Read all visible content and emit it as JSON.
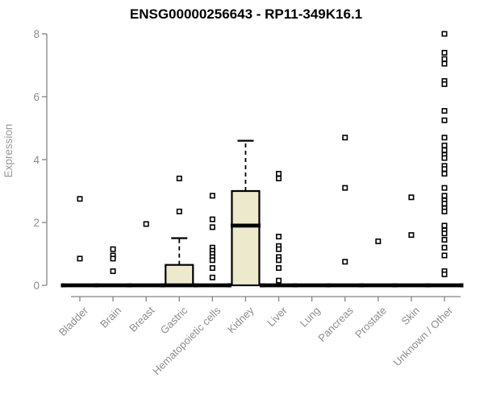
{
  "chart_data": {
    "type": "boxplot",
    "title": "ENSG00000256643 - RP11-349K16.1",
    "ylabel": "Expression",
    "xlabel": "",
    "ylim": [
      0,
      8
    ],
    "yticks": [
      0,
      2,
      4,
      6,
      8
    ],
    "grid": false,
    "legend": "none",
    "box_fill_color": "#ece9cd",
    "box_border_color": "#000000",
    "axis_color": "#848484",
    "tick_label_color": "#8c8c8c",
    "ylabel_color": "#9a9a9a",
    "categories": [
      "Bladder",
      "Brain",
      "Breast",
      "Gastric",
      "Hematopoietic cells",
      "Kidney",
      "Liver",
      "Lung",
      "Pancreas",
      "Prostate",
      "Skin",
      "Unknown / Other"
    ],
    "boxes": [
      {
        "category": "Bladder",
        "q1": 0,
        "median": 0,
        "q3": 0,
        "whisker_low": 0,
        "whisker_high": 0,
        "outliers": [
          2.75,
          0.85
        ]
      },
      {
        "category": "Brain",
        "q1": 0,
        "median": 0,
        "q3": 0,
        "whisker_low": 0,
        "whisker_high": 0,
        "outliers": [
          1.15,
          0.95,
          0.85,
          0.45
        ]
      },
      {
        "category": "Breast",
        "q1": 0,
        "median": 0,
        "q3": 0,
        "whisker_low": 0,
        "whisker_high": 0,
        "outliers": [
          1.95
        ]
      },
      {
        "category": "Gastric",
        "q1": 0,
        "median": 0,
        "q3": 0.65,
        "whisker_low": 0,
        "whisker_high": 1.5,
        "outliers": [
          3.4,
          2.35
        ]
      },
      {
        "category": "Hematopoietic cells",
        "q1": 0,
        "median": 0,
        "q3": 0,
        "whisker_low": 0,
        "whisker_high": 0,
        "outliers": [
          2.85,
          2.1,
          1.85,
          1.2,
          1.1,
          1.0,
          0.9,
          0.8,
          0.55,
          0.25
        ]
      },
      {
        "category": "Kidney",
        "q1": 0,
        "median": 1.9,
        "q3": 3.0,
        "whisker_low": 0,
        "whisker_high": 4.6,
        "outliers": []
      },
      {
        "category": "Liver",
        "q1": 0,
        "median": 0,
        "q3": 0,
        "whisker_low": 0,
        "whisker_high": 0,
        "outliers": [
          3.55,
          3.4,
          1.55,
          1.25,
          1.15,
          0.9,
          0.8,
          0.55,
          0.15
        ]
      },
      {
        "category": "Lung",
        "q1": 0,
        "median": 0,
        "q3": 0,
        "whisker_low": 0,
        "whisker_high": 0,
        "outliers": []
      },
      {
        "category": "Pancreas",
        "q1": 0,
        "median": 0,
        "q3": 0,
        "whisker_low": 0,
        "whisker_high": 0,
        "outliers": [
          4.7,
          3.1,
          0.75
        ]
      },
      {
        "category": "Prostate",
        "q1": 0,
        "median": 0,
        "q3": 0,
        "whisker_low": 0,
        "whisker_high": 0,
        "outliers": [
          1.4
        ]
      },
      {
        "category": "Skin",
        "q1": 0,
        "median": 0,
        "q3": 0,
        "whisker_low": 0,
        "whisker_high": 0,
        "outliers": [
          2.8,
          1.6
        ]
      },
      {
        "category": "Unknown / Other",
        "q1": 0,
        "median": 0,
        "q3": 0,
        "whisker_low": 0,
        "whisker_high": 0,
        "outliers": [
          8.0,
          7.4,
          7.2,
          7.05,
          6.5,
          6.4,
          5.55,
          5.25,
          4.7,
          4.45,
          4.3,
          4.15,
          4.05,
          3.8,
          3.7,
          3.55,
          3.1,
          2.85,
          2.7,
          2.6,
          2.45,
          2.35,
          1.9,
          1.75,
          1.65,
          1.45,
          1.2,
          0.95,
          0.45,
          0.35
        ]
      }
    ]
  }
}
